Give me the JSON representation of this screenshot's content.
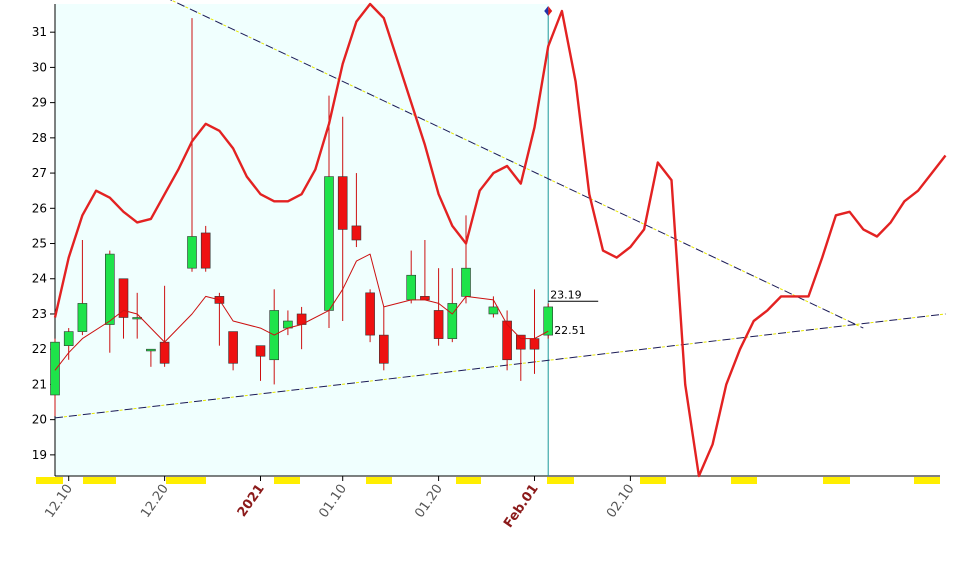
{
  "chart_data": {
    "type": "candlestick",
    "title": "",
    "xlabel": "",
    "ylabel": "",
    "ylim": [
      18.4,
      31.8
    ],
    "y_ticks": [
      19,
      20,
      21,
      22,
      23,
      24,
      25,
      26,
      27,
      28,
      29,
      30,
      31
    ],
    "grid": false,
    "x_ticks": [
      {
        "label": "12.10",
        "session": 1,
        "style": "normal"
      },
      {
        "label": "12.20",
        "session": 8,
        "style": "normal"
      },
      {
        "label": "2021",
        "session": 15,
        "style": "major"
      },
      {
        "label": "01.10",
        "session": 21,
        "style": "normal"
      },
      {
        "label": "01.20",
        "session": 28,
        "style": "normal"
      },
      {
        "label": "Feb.01",
        "session": 35,
        "style": "major"
      },
      {
        "label": "02.10",
        "session": 42,
        "style": "normal"
      }
    ],
    "candles": [
      {
        "session": 0,
        "open": 20.7,
        "high": 22.3,
        "low": 20.1,
        "close": 22.2
      },
      {
        "session": 1,
        "open": 22.1,
        "high": 22.6,
        "low": 21.7,
        "close": 22.5
      },
      {
        "session": 2,
        "open": 22.5,
        "high": 25.1,
        "low": 22.4,
        "close": 23.3
      },
      {
        "session": 4,
        "open": 22.7,
        "high": 24.8,
        "low": 21.9,
        "close": 24.7
      },
      {
        "session": 5,
        "open": 24.0,
        "high": 24.0,
        "low": 22.3,
        "close": 22.9
      },
      {
        "session": 6,
        "open": 22.9,
        "high": 23.6,
        "low": 22.3,
        "close": 22.9
      },
      {
        "session": 7,
        "open": 21.95,
        "high": 22.0,
        "low": 21.5,
        "close": 22.0
      },
      {
        "session": 8,
        "open": 22.2,
        "high": 23.8,
        "low": 21.5,
        "close": 21.6
      },
      {
        "session": 10,
        "open": 24.3,
        "high": 31.4,
        "low": 24.2,
        "close": 25.2
      },
      {
        "session": 11,
        "open": 25.3,
        "high": 25.5,
        "low": 24.2,
        "close": 24.3
      },
      {
        "session": 12,
        "open": 23.5,
        "high": 23.6,
        "low": 22.1,
        "close": 23.3
      },
      {
        "session": 13,
        "open": 22.5,
        "high": 22.5,
        "low": 21.4,
        "close": 21.6
      },
      {
        "session": 15,
        "open": 22.1,
        "high": 22.1,
        "low": 21.1,
        "close": 21.8
      },
      {
        "session": 16,
        "open": 21.7,
        "high": 23.7,
        "low": 21.0,
        "close": 23.1
      },
      {
        "session": 17,
        "open": 22.6,
        "high": 23.1,
        "low": 22.4,
        "close": 22.8
      },
      {
        "session": 18,
        "open": 23.0,
        "high": 23.2,
        "low": 22.0,
        "close": 22.7
      },
      {
        "session": 20,
        "open": 23.1,
        "high": 29.2,
        "low": 22.6,
        "close": 26.9
      },
      {
        "session": 21,
        "open": 26.9,
        "high": 28.6,
        "low": 22.8,
        "close": 25.4
      },
      {
        "session": 22,
        "open": 25.5,
        "high": 27.0,
        "low": 24.9,
        "close": 25.1
      },
      {
        "session": 23,
        "open": 23.6,
        "high": 23.7,
        "low": 22.2,
        "close": 22.4
      },
      {
        "session": 24,
        "open": 22.4,
        "high": 23.2,
        "low": 21.4,
        "close": 21.6
      },
      {
        "session": 26,
        "open": 23.4,
        "high": 24.8,
        "low": 23.3,
        "close": 24.1
      },
      {
        "session": 27,
        "open": 23.5,
        "high": 25.1,
        "low": 23.4,
        "close": 23.4
      },
      {
        "session": 28,
        "open": 23.1,
        "high": 24.3,
        "low": 22.1,
        "close": 22.3
      },
      {
        "session": 29,
        "open": 22.3,
        "high": 24.3,
        "low": 22.2,
        "close": 23.3
      },
      {
        "session": 30,
        "open": 23.5,
        "high": 25.8,
        "low": 23.3,
        "close": 24.3
      },
      {
        "session": 32,
        "open": 23.0,
        "high": 23.5,
        "low": 22.9,
        "close": 23.2
      },
      {
        "session": 33,
        "open": 22.8,
        "high": 23.1,
        "low": 21.4,
        "close": 21.7
      },
      {
        "session": 34,
        "open": 22.4,
        "high": 22.4,
        "low": 21.1,
        "close": 22.0
      },
      {
        "session": 35,
        "open": 22.3,
        "high": 23.7,
        "low": 21.3,
        "close": 22.0
      },
      {
        "session": 36,
        "open": 22.4,
        "high": 23.3,
        "low": 22.3,
        "close": 23.2
      }
    ],
    "series": [
      {
        "color": "#e32222",
        "style": "thick",
        "points": [
          [
            0,
            22.9
          ],
          [
            1,
            24.6
          ],
          [
            2,
            25.8
          ],
          [
            3,
            26.5
          ],
          [
            4,
            26.3
          ],
          [
            5,
            25.9
          ],
          [
            6,
            25.6
          ],
          [
            7,
            25.7
          ],
          [
            8,
            26.4
          ],
          [
            9,
            27.1
          ],
          [
            10,
            27.9
          ],
          [
            11,
            28.4
          ],
          [
            12,
            28.2
          ],
          [
            13,
            27.7
          ],
          [
            14,
            26.9
          ],
          [
            15,
            26.4
          ],
          [
            16,
            26.2
          ],
          [
            17,
            26.2
          ],
          [
            18,
            26.4
          ],
          [
            19,
            27.1
          ],
          [
            20,
            28.4
          ],
          [
            21,
            30.1
          ],
          [
            22,
            31.3
          ],
          [
            23,
            31.8
          ],
          [
            24,
            31.4
          ],
          [
            25,
            30.2
          ],
          [
            26,
            29.0
          ],
          [
            27,
            27.8
          ],
          [
            28,
            26.4
          ],
          [
            29,
            25.5
          ],
          [
            30,
            25.0
          ],
          [
            31,
            26.5
          ],
          [
            32,
            27.0
          ],
          [
            33,
            27.2
          ],
          [
            34,
            26.7
          ],
          [
            35,
            28.3
          ],
          [
            36,
            30.6
          ],
          [
            37,
            31.6
          ],
          [
            38,
            29.6
          ],
          [
            39,
            26.4
          ],
          [
            40,
            24.8
          ],
          [
            41,
            24.6
          ],
          [
            42,
            24.9
          ],
          [
            43,
            25.4
          ],
          [
            44,
            27.3
          ],
          [
            45,
            26.8
          ],
          [
            46,
            21.0
          ],
          [
            47,
            18.4
          ],
          [
            48,
            19.3
          ],
          [
            49,
            21.0
          ],
          [
            50,
            22.0
          ],
          [
            51,
            22.8
          ],
          [
            52,
            23.1
          ],
          [
            53,
            23.5
          ],
          [
            54,
            23.5
          ],
          [
            55,
            23.5
          ],
          [
            56,
            24.6
          ],
          [
            57,
            25.8
          ],
          [
            58,
            25.9
          ],
          [
            59,
            25.4
          ],
          [
            60,
            25.2
          ],
          [
            61,
            25.6
          ],
          [
            62,
            26.2
          ],
          [
            63,
            26.5
          ],
          [
            64,
            27.0
          ],
          [
            65,
            27.5
          ]
        ]
      },
      {
        "color": "#cc1111",
        "style": "thin",
        "points": [
          [
            0,
            21.4
          ],
          [
            1,
            21.9
          ],
          [
            2,
            22.3
          ],
          [
            4,
            22.8
          ],
          [
            5,
            23.1
          ],
          [
            6,
            23.0
          ],
          [
            7,
            22.6
          ],
          [
            8,
            22.2
          ],
          [
            10,
            23.0
          ],
          [
            11,
            23.5
          ],
          [
            12,
            23.4
          ],
          [
            13,
            22.8
          ],
          [
            15,
            22.6
          ],
          [
            16,
            22.4
          ],
          [
            17,
            22.6
          ],
          [
            18,
            22.7
          ],
          [
            20,
            23.1
          ],
          [
            21,
            23.7
          ],
          [
            22,
            24.5
          ],
          [
            23,
            24.7
          ],
          [
            24,
            23.2
          ],
          [
            26,
            23.4
          ],
          [
            27,
            23.4
          ],
          [
            28,
            23.3
          ],
          [
            29,
            23.0
          ],
          [
            30,
            23.5
          ],
          [
            32,
            23.4
          ],
          [
            33,
            22.7
          ],
          [
            34,
            22.3
          ],
          [
            35,
            22.3
          ],
          [
            36,
            22.51
          ]
        ]
      }
    ],
    "trendlines": [
      {
        "name_hint": "upper",
        "from": [
          8,
          32.0
        ],
        "to": [
          59,
          22.6
        ]
      },
      {
        "name_hint": "lower",
        "from": [
          0,
          20.05
        ],
        "to": [
          65,
          23.0
        ]
      }
    ],
    "annotations": [
      {
        "text": "23.19",
        "session": 36,
        "y": 23.19
      },
      {
        "text": "22.51",
        "session": 36,
        "y": 22.51
      }
    ],
    "cursor_session": 36,
    "history_last_session": 36
  }
}
